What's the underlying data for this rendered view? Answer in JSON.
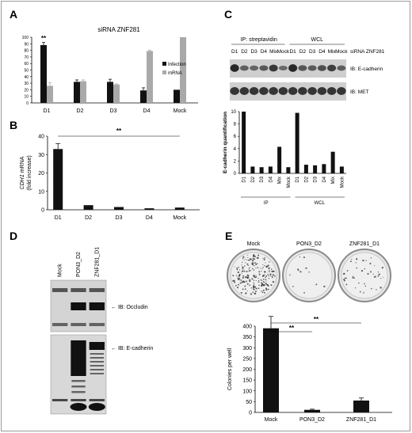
{
  "panels": {
    "A": "A",
    "B": "B",
    "C": "C",
    "D": "D",
    "E": "E"
  },
  "panelA": {
    "chart_data": {
      "type": "bar",
      "title": "siRNA ZNF281",
      "categories": [
        "D1",
        "D2",
        "D3",
        "D4",
        "Mock"
      ],
      "series": [
        {
          "name": "Infection",
          "values": [
            88,
            32,
            32,
            19,
            20
          ],
          "errors": [
            4,
            3,
            4,
            4,
            0
          ],
          "color": "#111111"
        },
        {
          "name": "mRNA",
          "values": [
            26,
            33,
            28,
            79,
            100
          ],
          "errors": [
            5,
            2,
            1,
            1,
            0
          ],
          "color": "#a9a9a9"
        }
      ],
      "yticks": [
        "0",
        "10",
        "20",
        "30",
        "40",
        "50",
        "60",
        "70",
        "80",
        "90",
        "100"
      ],
      "ylim": [
        0,
        100
      ],
      "annotation": "**"
    }
  },
  "panelB": {
    "chart_data": {
      "type": "bar",
      "ylabel_italic": "CDH1",
      "ylabel_rest": " mRNA",
      "ylabel_sub": "(fold increase)",
      "categories": [
        "D1",
        "D2",
        "D3",
        "D4",
        "Mock"
      ],
      "values": [
        33,
        2.5,
        1.5,
        0.8,
        1.2
      ],
      "errors": [
        3,
        0,
        0,
        0,
        0
      ],
      "yticks": [
        "0",
        "10",
        "20",
        "30",
        "40"
      ],
      "ylim": [
        0,
        40
      ],
      "annotation": "**"
    }
  },
  "panelC": {
    "header_ip": "IP: streptavidin",
    "header_wcl": "WCL",
    "lanes": [
      "D1",
      "D2",
      "D3",
      "D4",
      "Mix",
      "Mock",
      "D1",
      "D2",
      "D3",
      "D4",
      "Mix",
      "Mock"
    ],
    "side_label": "siRNA ZNF281",
    "blot1_label": "IB: E-cadherin",
    "blot2_label": "IB: MET",
    "chart_data": {
      "type": "bar",
      "ylabel": "E-cadherin quantification",
      "categories": [
        "D1",
        "D2",
        "D3",
        "D4",
        "Mix",
        "Mock",
        "D1",
        "D2",
        "D3",
        "D4",
        "Mix",
        "Mock"
      ],
      "values": [
        10,
        1.1,
        1.0,
        1.1,
        4.3,
        1.0,
        9.8,
        1.4,
        1.3,
        1.5,
        3.5,
        1.1
      ],
      "yticks": [
        "0",
        "2",
        "4",
        "6",
        "8",
        "10"
      ],
      "ylim": [
        0,
        10
      ],
      "groups": [
        "IP",
        "WCL"
      ]
    }
  },
  "panelD": {
    "lanes": [
      "Mock",
      "PON3_D2",
      "ZNF281_D1"
    ],
    "blot1_label": "IB: Occludin",
    "blot2_label": "IB: E-cadherin"
  },
  "panelE": {
    "plates": [
      "Mock",
      "PON3_D2",
      "ZNF281_D1"
    ],
    "chart_data": {
      "type": "bar",
      "ylabel": "Colonies per well",
      "categories": [
        "Mock",
        "PON3_D2",
        "ZNF281_D1"
      ],
      "values": [
        390,
        12,
        55
      ],
      "errors": [
        55,
        3,
        12
      ],
      "yticks": [
        "0",
        "50",
        "100",
        "150",
        "200",
        "250",
        "300",
        "350",
        "400"
      ],
      "ylim": [
        0,
        400
      ],
      "annotations": [
        "**",
        "**"
      ]
    }
  }
}
